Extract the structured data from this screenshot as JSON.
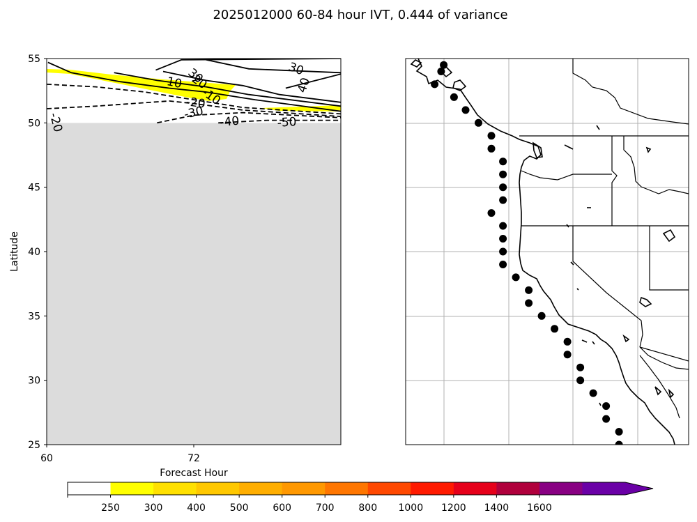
{
  "figure": {
    "title": "2025012000 60-84 hour IVT, 0.444 of variance"
  },
  "chart_data": [
    {
      "type": "contour",
      "panel": "left",
      "xlabel": "Forecast Hour",
      "ylabel": "Latitude",
      "xlim": [
        60,
        84
      ],
      "ylim": [
        25,
        55
      ],
      "xticks": [
        60,
        72
      ],
      "yticks": [
        25,
        30,
        35,
        40,
        45,
        50,
        55
      ],
      "masked_region": {
        "lat_max": 50,
        "color": "#dcdcdc"
      },
      "shaded_region": {
        "threshold": 250,
        "color": "#ffff00"
      },
      "contour_labels": [
        "30",
        "20",
        "10",
        "-10",
        "-20",
        "-30",
        "-40",
        "-50",
        "30",
        "40",
        "-20"
      ],
      "contours": [
        {
          "level": "positive",
          "style": "solid",
          "points": [
            [
              60.1,
              54.7
            ],
            [
              62,
              53.9
            ],
            [
              66,
              53.2
            ],
            [
              70,
              52.7
            ],
            [
              73,
              52.4
            ],
            [
              77,
              51.8
            ],
            [
              84,
              50.9
            ]
          ]
        },
        {
          "level": "positive",
          "style": "solid",
          "points": [
            [
              65.5,
              53.9
            ],
            [
              69,
              53.3
            ],
            [
              73,
              52.8
            ],
            [
              76.5,
              52.2
            ],
            [
              84,
              51.3
            ]
          ]
        },
        {
          "level": "positive",
          "style": "solid",
          "points": [
            [
              69.5,
              54.0
            ],
            [
              73,
              53.3
            ],
            [
              76,
              52.9
            ],
            [
              79,
              52.2
            ],
            [
              84,
              51.6
            ]
          ]
        },
        {
          "level": "positive",
          "style": "solid",
          "points": [
            [
              68.9,
              54.1
            ],
            [
              71,
              54.9
            ],
            [
              84,
              55.0
            ]
          ]
        },
        {
          "level": "positive",
          "style": "solid",
          "points": [
            [
              73,
              54.9
            ],
            [
              76.5,
              54.2
            ],
            [
              84,
              53.9
            ]
          ]
        },
        {
          "level": "positive",
          "style": "solid",
          "points": [
            [
              79.5,
              52.7
            ],
            [
              84,
              53.8
            ]
          ]
        },
        {
          "level": "negative",
          "style": "dashed",
          "points": [
            [
              60,
              53.0
            ],
            [
              64,
              52.8
            ],
            [
              68,
              52.4
            ],
            [
              72,
              51.8
            ],
            [
              76,
              51.2
            ],
            [
              84,
              50.7
            ]
          ]
        },
        {
          "level": "negative",
          "style": "dashed",
          "points": [
            [
              60,
              51.1
            ],
            [
              64,
              51.3
            ],
            [
              67,
              51.5
            ],
            [
              70,
              51.7
            ],
            [
              72,
              51.5
            ],
            [
              76,
              51.0
            ],
            [
              84,
              50.5
            ]
          ]
        },
        {
          "level": "negative",
          "style": "dashed",
          "points": [
            [
              69,
              50.0
            ],
            [
              72,
              50.6
            ],
            [
              76,
              50.8
            ],
            [
              84,
              50.4
            ]
          ]
        },
        {
          "level": "negative",
          "style": "dashed",
          "points": [
            [
              74,
              50.0
            ],
            [
              78,
              50.2
            ],
            [
              84,
              50.2
            ]
          ]
        }
      ],
      "colorbar": {
        "boundaries": [
          0,
          250,
          300,
          400,
          500,
          600,
          700,
          800,
          1000,
          1200,
          1400,
          1600,
          1800
        ],
        "tick_labels": [
          "250",
          "300",
          "400",
          "500",
          "600",
          "700",
          "800",
          "1000",
          "1200",
          "1400",
          "1600"
        ],
        "colors": [
          "#ffffff",
          "#ffff00",
          "#ffe000",
          "#ffc800",
          "#ffae00",
          "#ff9800",
          "#ff7600",
          "#ff4800",
          "#ff1a00",
          "#e6001a",
          "#b0003c",
          "#880082",
          "#6a00a6"
        ],
        "extend": "max"
      }
    },
    {
      "type": "map",
      "panel": "right",
      "region": "US West Coast",
      "marker_color": "#000000",
      "points_latlon": [
        [
          54.5,
          -130.3
        ],
        [
          54.0,
          -130.5
        ],
        [
          53.0,
          -131.0
        ],
        [
          52.0,
          -129.5
        ],
        [
          51.0,
          -128.6
        ],
        [
          50.0,
          -127.6
        ],
        [
          49.0,
          -126.6
        ],
        [
          48.0,
          -126.6
        ],
        [
          47.0,
          -125.7
        ],
        [
          46.0,
          -125.7
        ],
        [
          45.0,
          -125.7
        ],
        [
          44.0,
          -125.7
        ],
        [
          43.0,
          -126.6
        ],
        [
          42.0,
          -125.7
        ],
        [
          41.0,
          -125.7
        ],
        [
          40.0,
          -125.7
        ],
        [
          39.0,
          -125.7
        ],
        [
          38.0,
          -124.7
        ],
        [
          37.0,
          -123.7
        ],
        [
          36.0,
          -123.7
        ],
        [
          35.0,
          -122.7
        ],
        [
          34.0,
          -121.7
        ],
        [
          33.0,
          -120.7
        ],
        [
          32.0,
          -120.7
        ],
        [
          31.0,
          -119.7
        ],
        [
          30.0,
          -119.7
        ],
        [
          29.0,
          -118.7
        ],
        [
          28.0,
          -117.7
        ],
        [
          27.0,
          -117.7
        ],
        [
          26.0,
          -116.7
        ],
        [
          25.0,
          -116.7
        ]
      ]
    }
  ]
}
